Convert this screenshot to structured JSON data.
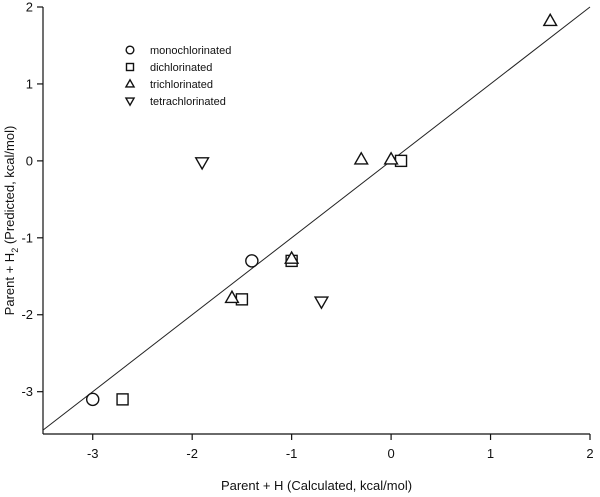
{
  "chart_data": {
    "type": "scatter",
    "xlabel": "Parent + H (Calculated, kcal/mol)",
    "ylabel_main": "Parent + H",
    "ylabel_sub": "2",
    "ylabel_tail": " (Predicted, kcal/mol)",
    "xlim": [
      -3.5,
      2
    ],
    "ylim": [
      -3.55,
      2
    ],
    "xticks": [
      -3,
      -2,
      -1,
      0,
      1,
      2
    ],
    "yticks": [
      -3,
      -2,
      -1,
      0,
      1,
      2
    ],
    "grid": false,
    "legend_position": "top-left",
    "fit_line": {
      "x": [
        -3.5,
        2
      ],
      "y": [
        -3.5,
        2
      ]
    },
    "series": [
      {
        "name": "monochlorinated",
        "marker": "circle",
        "points": [
          [
            -3.0,
            -3.1
          ],
          [
            -1.4,
            -1.3
          ]
        ]
      },
      {
        "name": "dichlorinated",
        "marker": "square",
        "points": [
          [
            -2.7,
            -3.1
          ],
          [
            -1.5,
            -1.8
          ],
          [
            -1.0,
            -1.3
          ],
          [
            0.1,
            0.0
          ]
        ]
      },
      {
        "name": "trichlorinated",
        "marker": "triangle-up",
        "points": [
          [
            -1.6,
            -1.78
          ],
          [
            -1.0,
            -1.27
          ],
          [
            -0.3,
            0.02
          ],
          [
            0.0,
            0.02
          ],
          [
            1.6,
            1.82
          ]
        ]
      },
      {
        "name": "tetrachlorinated",
        "marker": "triangle-down",
        "points": [
          [
            -1.9,
            -0.02
          ],
          [
            -0.7,
            -1.83
          ]
        ]
      }
    ]
  }
}
